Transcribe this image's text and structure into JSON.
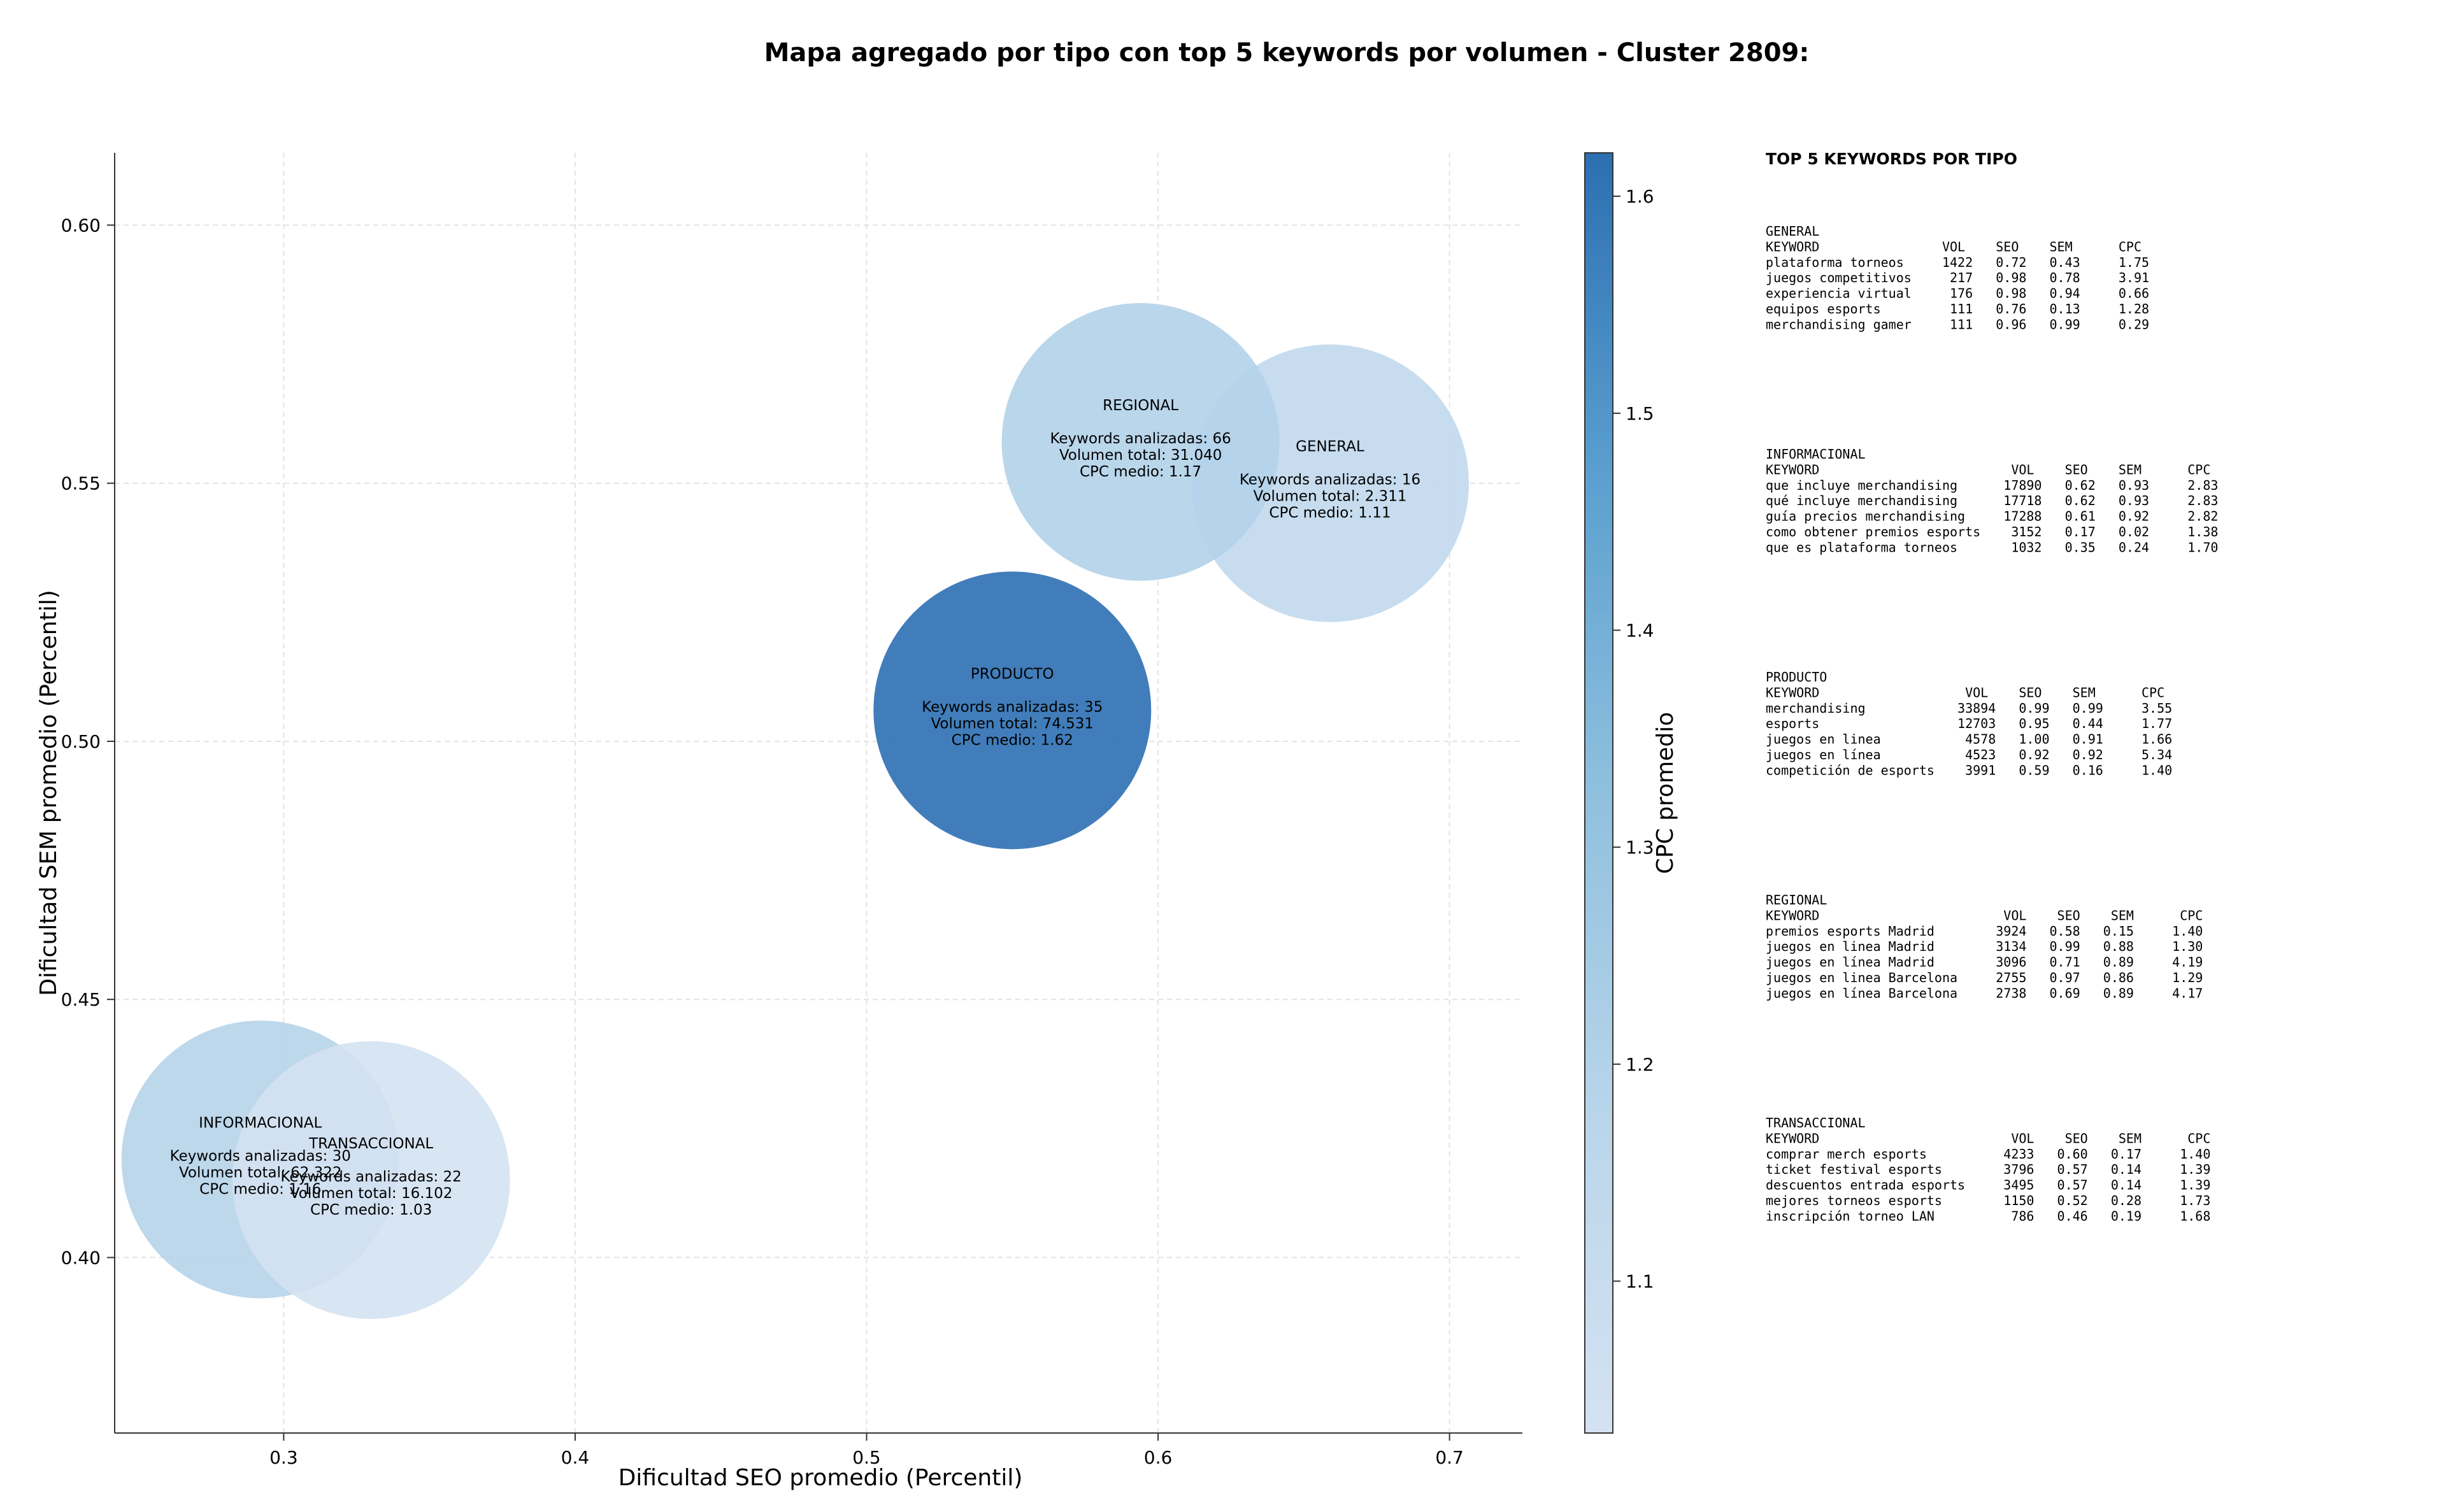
{
  "title": "Mapa agregado por tipo con top 5 keywords por volumen - Cluster 2809:",
  "chart_data": {
    "type": "scatter",
    "subtype": "bubble",
    "xlabel": "Dificultad SEO promedio (Percentil)",
    "ylabel": "Dificultad SEM promedio (Percentil)",
    "xlim": [
      0.242,
      0.725
    ],
    "ylim": [
      0.366,
      0.614
    ],
    "xticks": [
      "0.3",
      "0.4",
      "0.5",
      "0.6",
      "0.7"
    ],
    "yticks": [
      "0.40",
      "0.45",
      "0.50",
      "0.55",
      "0.60"
    ],
    "grid": true,
    "colorbar": {
      "label": "CPC promedio",
      "range": [
        1.03,
        1.62
      ],
      "ticks": [
        "1.1",
        "1.2",
        "1.3",
        "1.4",
        "1.5",
        "1.6"
      ],
      "colormap": [
        "#d4e2f2",
        "#2c6fb2"
      ]
    },
    "bubbles": [
      {
        "name": "INFORMACIONAL",
        "x": 0.292,
        "y": 0.419,
        "cpc": 1.16,
        "lines": [
          "Keywords analizadas: 30",
          "Volumen total: 62.322",
          "CPC medio: 1.16"
        ]
      },
      {
        "name": "TRANSACCIONAL",
        "x": 0.33,
        "y": 0.415,
        "cpc": 1.03,
        "lines": [
          "Keywords analizadas: 22",
          "Volumen total: 16.102",
          "CPC medio: 1.03"
        ]
      },
      {
        "name": "PRODUCTO",
        "x": 0.55,
        "y": 0.506,
        "cpc": 1.62,
        "lines": [
          "Keywords analizadas: 35",
          "Volumen total: 74.531",
          "CPC medio: 1.62"
        ]
      },
      {
        "name": "GENERAL",
        "x": 0.659,
        "y": 0.55,
        "cpc": 1.11,
        "lines": [
          "Keywords analizadas: 16",
          "Volumen total: 2.311",
          "CPC medio: 1.11"
        ]
      },
      {
        "name": "REGIONAL",
        "x": 0.594,
        "y": 0.558,
        "cpc": 1.17,
        "lines": [
          "Keywords analizadas: 66",
          "Volumen total: 31.040",
          "CPC medio: 1.17"
        ]
      }
    ]
  },
  "side_panel": {
    "heading": "TOP 5 KEYWORDS POR TIPO",
    "tables": [
      {
        "type": "GENERAL",
        "header": "KEYWORD                VOL    SEO    SEM      CPC",
        "rows": [
          "plataforma torneos     1422   0.72   0.43     1.75",
          "juegos competitivos     217   0.98   0.78     3.91",
          "experiencia virtual     176   0.98   0.94     0.66",
          "equipos esports         111   0.76   0.13     1.28",
          "merchandising gamer     111   0.96   0.99     0.29"
        ]
      },
      {
        "type": "INFORMACIONAL",
        "header": "KEYWORD                         VOL    SEO    SEM      CPC",
        "rows": [
          "que incluye merchandising      17890   0.62   0.93     2.83",
          "qué incluye merchandising      17718   0.62   0.93     2.83",
          "guía precios merchandising     17288   0.61   0.92     2.82",
          "como obtener premios esports    3152   0.17   0.02     1.38",
          "que es plataforma torneos       1032   0.35   0.24     1.70"
        ]
      },
      {
        "type": "PRODUCTO",
        "header": "KEYWORD                   VOL    SEO    SEM      CPC",
        "rows": [
          "merchandising            33894   0.99   0.99     3.55",
          "esports                  12703   0.95   0.44     1.77",
          "juegos en linea           4578   1.00   0.91     1.66",
          "juegos en línea           4523   0.92   0.92     5.34",
          "competición de esports    3991   0.59   0.16     1.40"
        ]
      },
      {
        "type": "REGIONAL",
        "header": "KEYWORD                        VOL    SEO    SEM      CPC",
        "rows": [
          "premios esports Madrid        3924   0.58   0.15     1.40",
          "juegos en linea Madrid        3134   0.99   0.88     1.30",
          "juegos en línea Madrid        3096   0.71   0.89     4.19",
          "juegos en linea Barcelona     2755   0.97   0.86     1.29",
          "juegos en línea Barcelona     2738   0.69   0.89     4.17"
        ]
      },
      {
        "type": "TRANSACCIONAL",
        "header": "KEYWORD                         VOL    SEO    SEM      CPC",
        "rows": [
          "comprar merch esports          4233   0.60   0.17     1.40",
          "ticket festival esports        3796   0.57   0.14     1.39",
          "descuentos entrada esports     3495   0.57   0.14     1.39",
          "mejores torneos esports        1150   0.52   0.28     1.73",
          "inscripción torneo LAN          786   0.46   0.19     1.68"
        ]
      }
    ]
  }
}
